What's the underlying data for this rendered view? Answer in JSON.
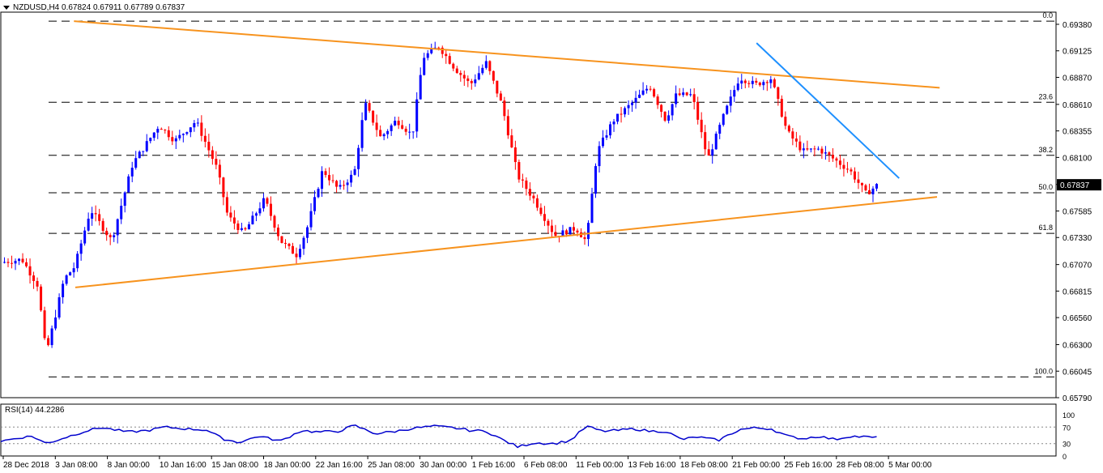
{
  "header": {
    "symbol": "NZDUSD,H4",
    "open": "0.67824",
    "high": "0.67911",
    "low": "0.67789",
    "close": "0.67837"
  },
  "rsi": {
    "label": "RSI(14)",
    "value": "44.2286",
    "levels": [
      "70",
      "30",
      "0"
    ],
    "scale_max": "100"
  },
  "colors": {
    "bull": "#0000ff",
    "bear": "#ff0000",
    "trendline_orange": "#f7931e",
    "trendline_blue": "#1e90ff",
    "rsi_line": "#0000cd",
    "current_price_box": "#000000"
  },
  "chart_data": {
    "type": "candlestick",
    "symbol": "NZDUSD",
    "timeframe": "H4",
    "price_axis": [
      "0.69380",
      "0.69125",
      "0.68870",
      "0.68610",
      "0.68355",
      "0.68100",
      "0.67840",
      "0.67585",
      "0.67330",
      "0.67070",
      "0.66815",
      "0.66560",
      "0.66300",
      "0.66045",
      "0.65790"
    ],
    "current_price": "0.67837",
    "time_axis": [
      "28 Dec 2018",
      "3 Jan 08:00",
      "8 Jan 00:00",
      "10 Jan 16:00",
      "15 Jan 08:00",
      "18 Jan 00:00",
      "22 Jan 16:00",
      "25 Jan 08:00",
      "30 Jan 00:00",
      "1 Feb 16:00",
      "6 Feb 08:00",
      "11 Feb 00:00",
      "13 Feb 16:00",
      "18 Feb 08:00",
      "21 Feb 00:00",
      "25 Feb 16:00",
      "28 Feb 08:00",
      "5 Mar 00:00"
    ],
    "fibonacci": [
      {
        "label": "0.0",
        "price": 0.6941
      },
      {
        "label": "23.6",
        "price": 0.6863
      },
      {
        "label": "38.2",
        "price": 0.6812
      },
      {
        "label": "50.0",
        "price": 0.6776
      },
      {
        "label": "61.8",
        "price": 0.6737
      },
      {
        "label": "100.0",
        "price": 0.6599
      }
    ],
    "trendlines": [
      {
        "color": "orange",
        "from": [
          0.0693,
          0.6941
        ],
        "to": [
          0.8897,
          0.6877
        ]
      },
      {
        "color": "orange",
        "from": [
          0.0706,
          0.6685
        ],
        "to": [
          0.8872,
          0.6772
        ]
      },
      {
        "color": "blue",
        "from": [
          0.7162,
          0.692
        ],
        "to": [
          0.8513,
          0.679
        ]
      }
    ],
    "price_path": [
      [
        0.0,
        0.6709
      ],
      [
        0.02,
        0.6712
      ],
      [
        0.035,
        0.6687
      ],
      [
        0.043,
        0.6621
      ],
      [
        0.06,
        0.6693
      ],
      [
        0.07,
        0.6705
      ],
      [
        0.085,
        0.676
      ],
      [
        0.105,
        0.673
      ],
      [
        0.125,
        0.6804
      ],
      [
        0.15,
        0.6841
      ],
      [
        0.165,
        0.6826
      ],
      [
        0.185,
        0.6845
      ],
      [
        0.205,
        0.6799
      ],
      [
        0.215,
        0.6754
      ],
      [
        0.23,
        0.6737
      ],
      [
        0.25,
        0.677
      ],
      [
        0.265,
        0.673
      ],
      [
        0.28,
        0.6716
      ],
      [
        0.29,
        0.6741
      ],
      [
        0.305,
        0.6798
      ],
      [
        0.32,
        0.6779
      ],
      [
        0.335,
        0.6795
      ],
      [
        0.345,
        0.6862
      ],
      [
        0.36,
        0.6829
      ],
      [
        0.375,
        0.6846
      ],
      [
        0.39,
        0.6831
      ],
      [
        0.4,
        0.6906
      ],
      [
        0.415,
        0.6917
      ],
      [
        0.43,
        0.6896
      ],
      [
        0.445,
        0.688
      ],
      [
        0.46,
        0.6901
      ],
      [
        0.475,
        0.686
      ],
      [
        0.49,
        0.6792
      ],
      [
        0.505,
        0.677
      ],
      [
        0.525,
        0.6735
      ],
      [
        0.545,
        0.6742
      ],
      [
        0.555,
        0.6729
      ],
      [
        0.565,
        0.6815
      ],
      [
        0.58,
        0.6845
      ],
      [
        0.6,
        0.6864
      ],
      [
        0.615,
        0.6879
      ],
      [
        0.63,
        0.6846
      ],
      [
        0.64,
        0.687
      ],
      [
        0.655,
        0.687
      ],
      [
        0.67,
        0.6808
      ],
      [
        0.685,
        0.685
      ],
      [
        0.7,
        0.6887
      ],
      [
        0.715,
        0.688
      ],
      [
        0.73,
        0.6886
      ],
      [
        0.745,
        0.6835
      ],
      [
        0.76,
        0.6816
      ],
      [
        0.775,
        0.6818
      ],
      [
        0.79,
        0.6808
      ],
      [
        0.805,
        0.6797
      ],
      [
        0.82,
        0.6775
      ],
      [
        0.83,
        0.6783
      ]
    ],
    "rsi_path": [
      [
        0.0,
        36
      ],
      [
        0.02,
        45
      ],
      [
        0.03,
        48
      ],
      [
        0.043,
        30
      ],
      [
        0.06,
        44
      ],
      [
        0.08,
        60
      ],
      [
        0.095,
        69
      ],
      [
        0.12,
        58
      ],
      [
        0.14,
        62
      ],
      [
        0.155,
        70
      ],
      [
        0.175,
        66
      ],
      [
        0.195,
        63
      ],
      [
        0.21,
        42
      ],
      [
        0.225,
        33
      ],
      [
        0.245,
        48
      ],
      [
        0.265,
        36
      ],
      [
        0.285,
        62
      ],
      [
        0.3,
        58
      ],
      [
        0.32,
        60
      ],
      [
        0.335,
        74
      ],
      [
        0.355,
        54
      ],
      [
        0.375,
        60
      ],
      [
        0.39,
        67
      ],
      [
        0.41,
        72
      ],
      [
        0.43,
        68
      ],
      [
        0.445,
        62
      ],
      [
        0.46,
        60
      ],
      [
        0.475,
        40
      ],
      [
        0.49,
        22
      ],
      [
        0.505,
        32
      ],
      [
        0.525,
        30
      ],
      [
        0.54,
        38
      ],
      [
        0.555,
        72
      ],
      [
        0.57,
        60
      ],
      [
        0.585,
        62
      ],
      [
        0.6,
        66
      ],
      [
        0.615,
        60
      ],
      [
        0.63,
        60
      ],
      [
        0.645,
        40
      ],
      [
        0.66,
        46
      ],
      [
        0.68,
        38
      ],
      [
        0.7,
        64
      ],
      [
        0.715,
        68
      ],
      [
        0.73,
        66
      ],
      [
        0.745,
        48
      ],
      [
        0.76,
        42
      ],
      [
        0.775,
        48
      ],
      [
        0.79,
        40
      ],
      [
        0.805,
        48
      ],
      [
        0.82,
        46
      ],
      [
        0.83,
        44
      ]
    ]
  }
}
